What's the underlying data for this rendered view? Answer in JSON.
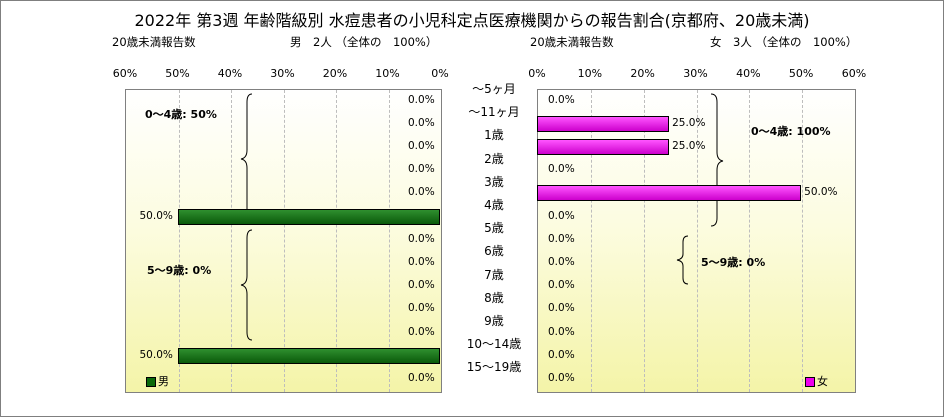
{
  "title": "2022年 第3週 年齢階級別 水痘患者の小児科定点医療機関からの報告割合(京都府、20歳未満)",
  "left_header": {
    "count_label": "20歳未満報告数",
    "summary": "男　2人 （全体の　100%）"
  },
  "right_header": {
    "count_label": "20歳未満報告数",
    "summary": "女　3人 （全体の　100%）"
  },
  "left_ticks": [
    "60%",
    "50%",
    "40%",
    "30%",
    "20%",
    "10%",
    "0%"
  ],
  "right_ticks": [
    "0%",
    "10%",
    "20%",
    "30%",
    "40%",
    "50%",
    "60%"
  ],
  "male_groups": [
    {
      "label": "0～4歳: 50%"
    },
    {
      "label": "5～9歳: 0%"
    }
  ],
  "female_groups": [
    {
      "label": "0～4歳: 100%"
    },
    {
      "label": "5～9歳: 0%"
    }
  ],
  "legend": {
    "male": "男",
    "female": "女",
    "male_color": "#0a6a0a",
    "female_color": "#ee00ee"
  },
  "chart_data": {
    "type": "bar",
    "orientation": "horizontal-population-pyramid",
    "categories": [
      "～5ヶ月",
      "～11ヶ月",
      "1歳",
      "2歳",
      "3歳",
      "4歳",
      "5歳",
      "6歳",
      "7歳",
      "8歳",
      "9歳",
      "10～14歳",
      "15～19歳"
    ],
    "xlim": [
      0,
      60
    ],
    "series": [
      {
        "name": "男",
        "color": "#0a6a0a",
        "values": [
          0,
          0,
          0,
          0,
          0,
          50,
          0,
          0,
          0,
          0,
          0,
          50,
          0
        ],
        "labels": [
          "0.0%",
          "0.0%",
          "0.0%",
          "0.0%",
          "0.0%",
          "50.0%",
          "0.0%",
          "0.0%",
          "0.0%",
          "0.0%",
          "0.0%",
          "50.0%",
          "0.0%"
        ]
      },
      {
        "name": "女",
        "color": "#ee00ee",
        "values": [
          0,
          25,
          25,
          0,
          50,
          0,
          0,
          0,
          0,
          0,
          0,
          0,
          0
        ],
        "labels": [
          "0.0%",
          "25.0%",
          "25.0%",
          "0.0%",
          "50.0%",
          "0.0%",
          "0.0%",
          "0.0%",
          "0.0%",
          "0.0%",
          "0.0%",
          "0.0%",
          "0.0%"
        ]
      }
    ]
  }
}
